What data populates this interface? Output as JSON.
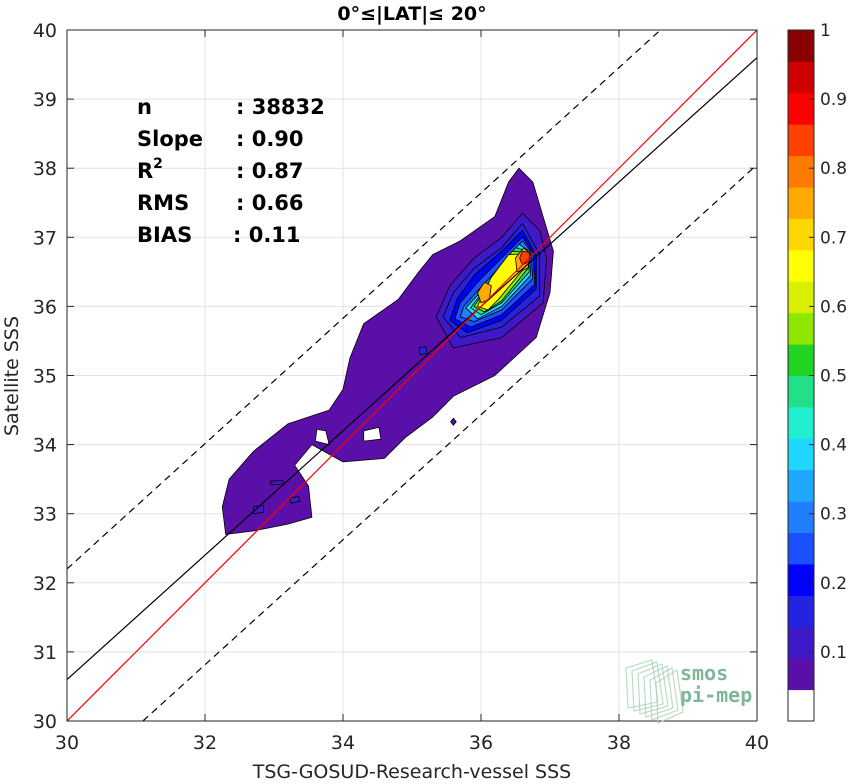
{
  "chart_data": {
    "type": "heatmap",
    "title": "0°≤|LAT|≤ 20°",
    "xlabel": "TSG-GOSUD-Research-vessel SSS",
    "ylabel": "Satellite SSS",
    "xlim": [
      30,
      40
    ],
    "ylim": [
      30,
      40
    ],
    "xticks": [
      30,
      32,
      34,
      36,
      38,
      40
    ],
    "yticks": [
      30,
      31,
      32,
      33,
      34,
      35,
      36,
      37,
      38,
      39,
      40
    ],
    "grid": true,
    "stats": [
      {
        "label": "n",
        "value": ": 38832"
      },
      {
        "label": "Slope",
        "value": ": 0.90"
      },
      {
        "label": "R",
        "sup": "2",
        "value": ": 0.87"
      },
      {
        "label": "RMS",
        "value": ": 0.66"
      },
      {
        "label": "BIAS",
        "value": ": 0.11"
      }
    ],
    "lines": {
      "one_to_one": {
        "points": [
          [
            30,
            30
          ],
          [
            40,
            40
          ]
        ],
        "color": "#ff0000"
      },
      "regression": {
        "slope": 0.9,
        "points": [
          [
            30,
            30.6
          ],
          [
            40,
            39.6
          ]
        ],
        "color": "#000000"
      },
      "upper_bound": {
        "points": [
          [
            30,
            32.2
          ],
          [
            38.6,
            40
          ]
        ],
        "color": "#000000",
        "dash": true
      },
      "lower_bound": {
        "points": [
          [
            31.1,
            30
          ],
          [
            40,
            38.05
          ]
        ],
        "color": "#000000",
        "dash": true
      }
    },
    "density_levels": [
      0.05,
      0.1,
      0.15,
      0.2,
      0.25,
      0.3,
      0.35,
      0.4,
      0.45,
      0.5,
      0.55,
      0.6,
      0.65,
      0.7,
      0.75,
      0.8,
      0.85,
      0.9,
      0.95
    ],
    "density_regions": [
      {
        "level": 0.05,
        "points": [
          [
            32.3,
            32.7
          ],
          [
            32.7,
            32.75
          ],
          [
            33.2,
            32.85
          ],
          [
            33.55,
            32.95
          ],
          [
            33.5,
            33.4
          ],
          [
            33.3,
            33.7
          ],
          [
            33.55,
            34.0
          ],
          [
            34.0,
            33.75
          ],
          [
            34.6,
            33.8
          ],
          [
            34.9,
            34.1
          ],
          [
            35.3,
            34.4
          ],
          [
            35.6,
            34.7
          ],
          [
            36.2,
            35.0
          ],
          [
            36.8,
            35.55
          ],
          [
            37.0,
            36.2
          ],
          [
            37.05,
            36.8
          ],
          [
            36.9,
            37.3
          ],
          [
            36.75,
            37.8
          ],
          [
            36.55,
            38.0
          ],
          [
            36.4,
            37.8
          ],
          [
            36.2,
            37.3
          ],
          [
            35.7,
            36.95
          ],
          [
            35.3,
            36.75
          ],
          [
            35.1,
            36.5
          ],
          [
            34.8,
            36.1
          ],
          [
            34.3,
            35.75
          ],
          [
            34.1,
            35.25
          ],
          [
            34.0,
            34.8
          ],
          [
            33.8,
            34.5
          ],
          [
            33.2,
            34.3
          ],
          [
            32.7,
            33.9
          ],
          [
            32.35,
            33.5
          ],
          [
            32.25,
            33.1
          ]
        ]
      },
      {
        "level": 0.05,
        "points": [
          [
            35.6,
            34.28
          ],
          [
            35.64,
            34.33
          ],
          [
            35.6,
            34.38
          ],
          [
            35.56,
            34.33
          ]
        ]
      },
      {
        "level": 0.1,
        "points": [
          [
            35.6,
            35.4
          ],
          [
            36.3,
            35.55
          ],
          [
            36.9,
            36.05
          ],
          [
            36.95,
            36.7
          ],
          [
            36.85,
            37.1
          ],
          [
            36.6,
            37.35
          ],
          [
            36.3,
            37.0
          ],
          [
            35.9,
            36.7
          ],
          [
            35.55,
            36.3
          ],
          [
            35.35,
            35.85
          ]
        ]
      },
      {
        "level": 0.15,
        "points": [
          [
            35.7,
            35.55
          ],
          [
            36.3,
            35.7
          ],
          [
            36.85,
            36.15
          ],
          [
            36.85,
            36.75
          ],
          [
            36.6,
            37.2
          ],
          [
            36.3,
            36.85
          ],
          [
            35.9,
            36.55
          ],
          [
            35.6,
            36.2
          ],
          [
            35.45,
            35.85
          ]
        ]
      },
      {
        "level": 0.2,
        "points": [
          [
            35.8,
            35.62
          ],
          [
            36.3,
            35.8
          ],
          [
            36.8,
            36.25
          ],
          [
            36.8,
            36.75
          ],
          [
            36.6,
            37.1
          ],
          [
            36.3,
            36.8
          ],
          [
            35.9,
            36.45
          ],
          [
            35.65,
            36.1
          ],
          [
            35.55,
            35.8
          ]
        ]
      },
      {
        "level": 0.25,
        "points": [
          [
            35.85,
            35.7
          ],
          [
            36.3,
            35.88
          ],
          [
            36.78,
            36.32
          ],
          [
            36.75,
            36.78
          ],
          [
            36.6,
            37.0
          ],
          [
            36.3,
            36.7
          ],
          [
            35.95,
            36.35
          ],
          [
            35.7,
            36.05
          ],
          [
            35.62,
            35.82
          ]
        ]
      },
      {
        "level": 0.3,
        "points": [
          [
            35.9,
            35.78
          ],
          [
            36.3,
            35.95
          ],
          [
            36.75,
            36.4
          ],
          [
            36.72,
            36.8
          ],
          [
            36.6,
            36.95
          ],
          [
            36.3,
            36.6
          ],
          [
            36.0,
            36.28
          ],
          [
            35.75,
            36.0
          ],
          [
            35.7,
            35.85
          ]
        ]
      },
      {
        "level": 0.4,
        "points": [
          [
            35.95,
            35.82
          ],
          [
            36.3,
            36.0
          ],
          [
            36.72,
            36.45
          ],
          [
            36.7,
            36.8
          ],
          [
            36.55,
            36.9
          ],
          [
            36.3,
            36.55
          ],
          [
            36.0,
            36.22
          ],
          [
            35.78,
            35.98
          ]
        ]
      },
      {
        "level": 0.5,
        "points": [
          [
            36.0,
            35.88
          ],
          [
            36.3,
            36.05
          ],
          [
            36.7,
            36.5
          ],
          [
            36.68,
            36.8
          ],
          [
            36.5,
            36.85
          ],
          [
            36.25,
            36.5
          ],
          [
            36.0,
            36.18
          ],
          [
            35.85,
            35.98
          ]
        ]
      },
      {
        "level": 0.6,
        "points": [
          [
            36.05,
            35.92
          ],
          [
            36.3,
            36.08
          ],
          [
            36.68,
            36.55
          ],
          [
            36.65,
            36.78
          ],
          [
            36.45,
            36.8
          ],
          [
            36.2,
            36.45
          ],
          [
            36.0,
            36.15
          ],
          [
            35.9,
            36.0
          ]
        ]
      },
      {
        "level": 0.7,
        "points": [
          [
            36.1,
            35.95
          ],
          [
            36.25,
            36.1
          ],
          [
            36.65,
            36.58
          ],
          [
            36.62,
            36.76
          ],
          [
            36.4,
            36.75
          ],
          [
            36.15,
            36.42
          ],
          [
            36.0,
            36.12
          ],
          [
            35.95,
            36.0
          ]
        ]
      },
      {
        "level": 0.8,
        "points": [
          [
            36.52,
            36.5
          ],
          [
            36.68,
            36.55
          ],
          [
            36.72,
            36.75
          ],
          [
            36.62,
            36.85
          ],
          [
            36.5,
            36.7
          ]
        ]
      },
      {
        "level": 0.8,
        "points": [
          [
            36.0,
            36.05
          ],
          [
            36.12,
            36.1
          ],
          [
            36.15,
            36.3
          ],
          [
            36.05,
            36.35
          ],
          [
            35.95,
            36.2
          ]
        ]
      },
      {
        "level": 0.9,
        "points": [
          [
            36.6,
            36.6
          ],
          [
            36.7,
            36.65
          ],
          [
            36.7,
            36.78
          ],
          [
            36.6,
            36.8
          ],
          [
            36.56,
            36.7
          ]
        ]
      },
      {
        "level": 0.1,
        "points": [
          [
            32.7,
            33.0
          ],
          [
            32.85,
            33.02
          ],
          [
            32.85,
            33.12
          ],
          [
            32.7,
            33.1
          ]
        ]
      },
      {
        "level": 0.1,
        "points": [
          [
            33.25,
            33.15
          ],
          [
            33.38,
            33.18
          ],
          [
            33.35,
            33.25
          ],
          [
            33.22,
            33.22
          ]
        ]
      },
      {
        "level": 0.1,
        "points": [
          [
            32.95,
            33.42
          ],
          [
            33.15,
            33.43
          ],
          [
            33.12,
            33.48
          ],
          [
            32.95,
            33.47
          ]
        ]
      },
      {
        "level": 0.15,
        "points": [
          [
            35.12,
            35.3
          ],
          [
            35.22,
            35.32
          ],
          [
            35.2,
            35.42
          ],
          [
            35.1,
            35.4
          ]
        ]
      }
    ],
    "holes": [
      {
        "points": [
          [
            33.6,
            34.05
          ],
          [
            33.8,
            34.0
          ],
          [
            33.75,
            34.2
          ],
          [
            33.62,
            34.22
          ]
        ]
      },
      {
        "points": [
          [
            34.3,
            34.05
          ],
          [
            34.55,
            34.08
          ],
          [
            34.52,
            34.25
          ],
          [
            34.3,
            34.2
          ]
        ]
      }
    ],
    "colorbar": {
      "range": [
        0,
        1
      ],
      "labels": [
        "0.1",
        "0.2",
        "0.3",
        "0.4",
        "0.5",
        "0.6",
        "0.7",
        "0.8",
        "0.9",
        "1"
      ],
      "colors": [
        "#ffffff",
        "#5a0fa8",
        "#3f19c7",
        "#2424e0",
        "#0000ff",
        "#1a50ff",
        "#1f7fff",
        "#1fa8ff",
        "#20d8ff",
        "#21f0d0",
        "#22e08a",
        "#22d422",
        "#8fe600",
        "#d8f000",
        "#ffff00",
        "#ffd700",
        "#ffaa00",
        "#ff7a00",
        "#ff4000",
        "#ff0000",
        "#cf0000",
        "#8a0000"
      ]
    }
  },
  "logo": {
    "line1": "smos",
    "line2": "pi-mep"
  }
}
